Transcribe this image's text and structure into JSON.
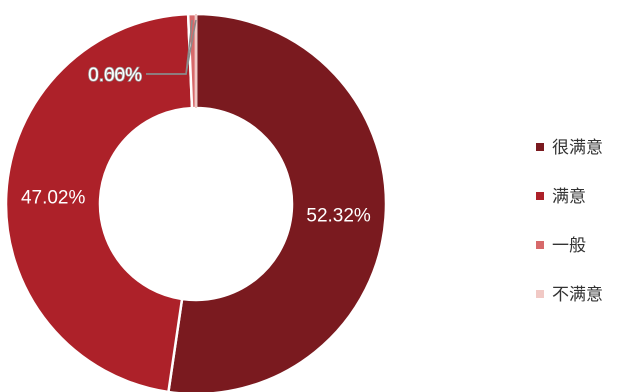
{
  "chart_data": {
    "type": "pie",
    "donut": true,
    "title": "",
    "legend_position": "right",
    "series": [
      {
        "name": "很满意",
        "value": 52.32,
        "label": "52.32%",
        "color": "#7a1a1f"
      },
      {
        "name": "满意",
        "value": 47.02,
        "label": "47.02%",
        "color": "#ad2129"
      },
      {
        "name": "一般",
        "value": 0.66,
        "label": "0.66%",
        "color": "#d7696a"
      },
      {
        "name": "不满意",
        "value": 0.0,
        "label": "0.00%",
        "color": "#f1c9c5"
      }
    ]
  }
}
